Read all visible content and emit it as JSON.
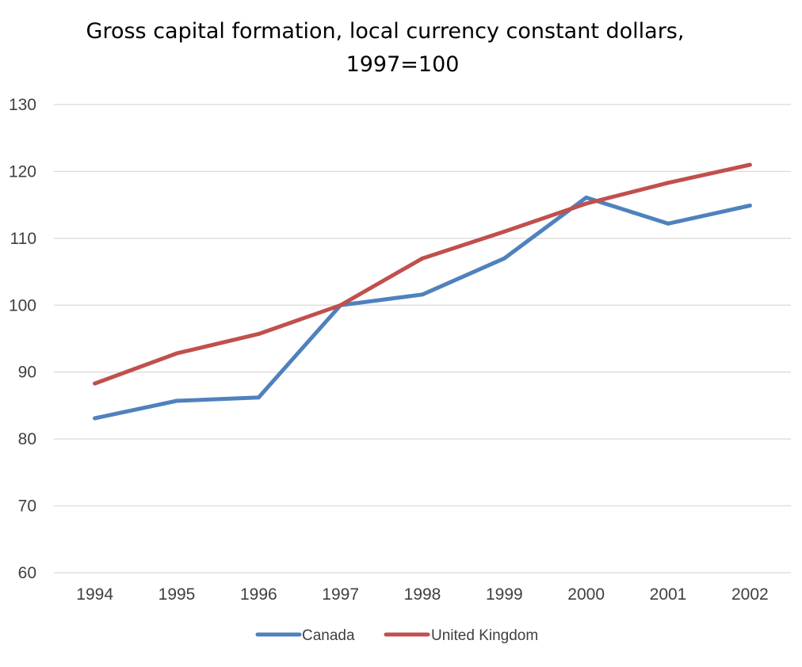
{
  "chart_data": {
    "type": "line",
    "title_lines": [
      "Gross capital formation, local currency constant dollars,",
      "1997=100"
    ],
    "title": "Gross capital formation, local currency constant dollars, 1997=100",
    "xlabel": "",
    "ylabel": "",
    "categories": [
      "1994",
      "1995",
      "1996",
      "1997",
      "1998",
      "1999",
      "2000",
      "2001",
      "2002"
    ],
    "ylim": [
      60,
      130
    ],
    "yticks": [
      60,
      70,
      80,
      90,
      100,
      110,
      120,
      130
    ],
    "grid": true,
    "legend_position": "bottom",
    "series": [
      {
        "name": "Canada",
        "color": "#4F81BD",
        "values": [
          83.1,
          85.7,
          86.2,
          100.0,
          101.6,
          107.0,
          116.1,
          112.2,
          114.9
        ]
      },
      {
        "name": "United Kingdom",
        "color": "#C0504D",
        "values": [
          88.3,
          92.8,
          95.7,
          100.0,
          107.0,
          111.0,
          115.2,
          118.3,
          121.0
        ]
      }
    ]
  }
}
